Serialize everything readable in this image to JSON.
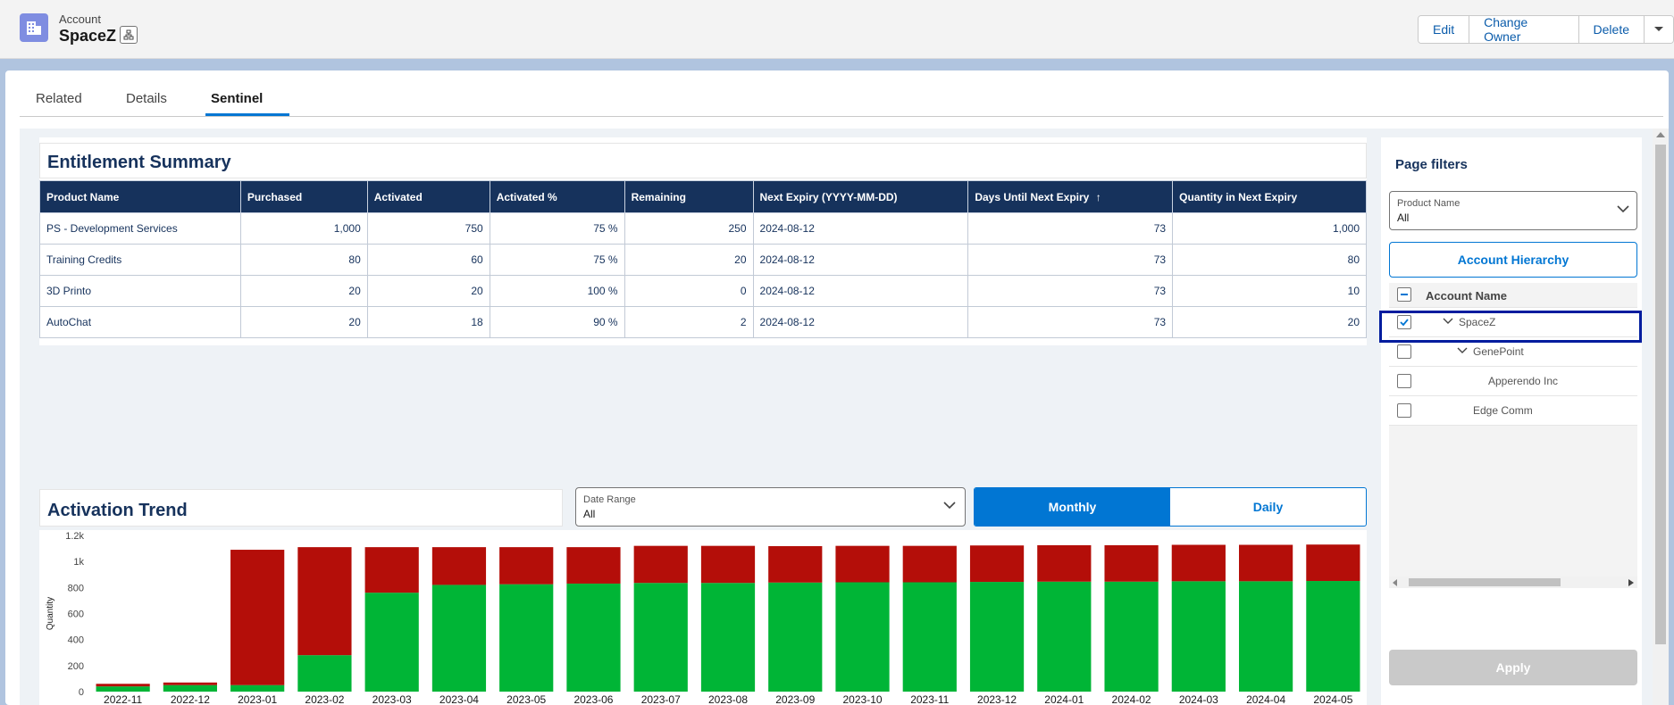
{
  "header": {
    "object_type": "Account",
    "record_name": "SpaceZ",
    "actions": [
      "Edit",
      "Change Owner",
      "Delete"
    ]
  },
  "tabs": [
    {
      "label": "Related",
      "active": false
    },
    {
      "label": "Details",
      "active": false
    },
    {
      "label": "Sentinel",
      "active": true
    }
  ],
  "entitlement": {
    "title": "Entitlement Summary",
    "columns": [
      "Product Name",
      "Purchased",
      "Activated",
      "Activated %",
      "Remaining",
      "Next Expiry (YYYY-MM-DD)",
      "Days Until Next Expiry",
      "Quantity in Next Expiry"
    ],
    "sort_indicator": "↑",
    "rows": [
      [
        "PS - Development Services",
        "1,000",
        "750",
        "75 %",
        "250",
        "2024-08-12",
        "73",
        "1,000"
      ],
      [
        "Training Credits",
        "80",
        "60",
        "75 %",
        "20",
        "2024-08-12",
        "73",
        "80"
      ],
      [
        "3D Printo",
        "20",
        "20",
        "100 %",
        "0",
        "2024-08-12",
        "73",
        "10"
      ],
      [
        "AutoChat",
        "20",
        "18",
        "90 %",
        "2",
        "2024-08-12",
        "73",
        "20"
      ]
    ]
  },
  "trend": {
    "title": "Activation Trend",
    "date_range": {
      "label": "Date Range",
      "value": "All"
    },
    "toggle": {
      "monthly": "Monthly",
      "daily": "Daily",
      "selected": "Monthly"
    }
  },
  "filters": {
    "title": "Page filters",
    "product": {
      "label": "Product Name",
      "value": "All"
    },
    "hierarchy_button": "Account Hierarchy",
    "tree_header": "Account Name",
    "tree": [
      {
        "name": "SpaceZ",
        "checked": true,
        "expanded": true
      },
      {
        "name": "GenePoint",
        "checked": false,
        "expanded": true
      },
      {
        "name": "Apperendo Inc",
        "checked": false,
        "expanded": false
      },
      {
        "name": "Edge Comm",
        "checked": false,
        "expanded": false
      }
    ],
    "apply": "Apply"
  },
  "colors": {
    "activated": "#00b536",
    "remaining": "#b40e09",
    "brand": "#0176d3",
    "header": "#16325c"
  },
  "chart_data": {
    "type": "bar",
    "stacked": true,
    "categories": [
      "2022-11",
      "2022-12",
      "2023-01",
      "2023-02",
      "2023-03",
      "2023-04",
      "2023-05",
      "2023-06",
      "2023-07",
      "2023-08",
      "2023-09",
      "2023-10",
      "2023-11",
      "2023-12",
      "2024-01",
      "2024-02",
      "2024-03",
      "2024-04",
      "2024-05"
    ],
    "series": [
      {
        "values": [
          40,
          50,
          50,
          280,
          760,
          820,
          825,
          830,
          835,
          835,
          838,
          840,
          840,
          843,
          845,
          845,
          848,
          848,
          850
        ],
        "color": "#00b536"
      },
      {
        "values": [
          20,
          20,
          1040,
          830,
          350,
          290,
          285,
          280,
          285,
          285,
          280,
          280,
          280,
          280,
          280,
          280,
          280,
          280,
          280
        ],
        "color": "#b40e09"
      }
    ],
    "ylabel": "Quantity",
    "ylim": [
      0,
      1200
    ],
    "yticks": [
      "0",
      "200",
      "400",
      "600",
      "800",
      "1k",
      "1.2k"
    ],
    "ytick_values": [
      0,
      200,
      400,
      600,
      800,
      1000,
      1200
    ],
    "grid": false
  }
}
